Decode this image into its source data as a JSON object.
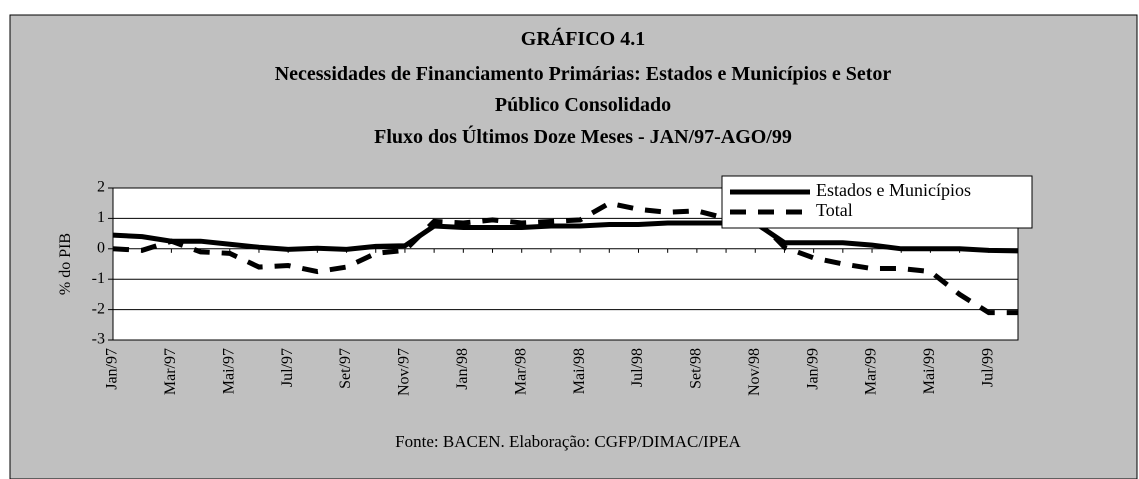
{
  "chart_data": {
    "type": "line",
    "title": "GRÁFICO 4.1",
    "subtitle": [
      "Necessidades de Financiamento Primárias: Estados e Municípios e Setor",
      "Público Consolidado",
      "Fluxo dos Últimos Doze Meses - JAN/97-AGO/99"
    ],
    "y_label": "% do PIB",
    "source": "Fonte: BACEN. Elaboração: CGFP/DIMAC/IPEA",
    "categories": [
      "Jan/97",
      null,
      "Mar/97",
      null,
      "Mai/97",
      null,
      "Jul/97",
      null,
      "Set/97",
      null,
      "Nov/97",
      null,
      "Jan/98",
      null,
      "Mar/98",
      null,
      "Mai/98",
      null,
      "Jul/98",
      null,
      "Set/98",
      null,
      "Nov/98",
      null,
      "Jan/99",
      null,
      "Mar/99",
      null,
      "Mai/99",
      null,
      "Jul/99",
      null
    ],
    "series": [
      {
        "name": "Estados e Municípios",
        "color": "#000000",
        "dash": false,
        "values": [
          0.45,
          0.4,
          0.25,
          0.25,
          0.15,
          0.05,
          -0.02,
          0.02,
          -0.02,
          0.08,
          0.1,
          0.75,
          0.7,
          0.7,
          0.7,
          0.75,
          0.75,
          0.8,
          0.8,
          0.85,
          0.85,
          0.85,
          0.85,
          0.2,
          0.2,
          0.2,
          0.12,
          0.0,
          0.0,
          0.0,
          -0.05,
          -0.07
        ]
      },
      {
        "name": "Total",
        "color": "#000000",
        "dash": true,
        "values": [
          0.0,
          -0.05,
          0.25,
          -0.1,
          -0.15,
          -0.6,
          -0.55,
          -0.75,
          -0.6,
          -0.15,
          -0.05,
          0.9,
          0.85,
          0.95,
          0.85,
          0.9,
          0.95,
          1.5,
          1.3,
          1.2,
          1.25,
          1.0,
          1.05,
          0.05,
          -0.3,
          -0.5,
          -0.65,
          -0.65,
          -0.75,
          -1.5,
          -2.1,
          -2.1
        ]
      }
    ],
    "ylim": [
      -3,
      2
    ],
    "yticks": [
      -3,
      -2,
      -1,
      0,
      1,
      2
    ],
    "grid": true,
    "legend": "top-right"
  }
}
